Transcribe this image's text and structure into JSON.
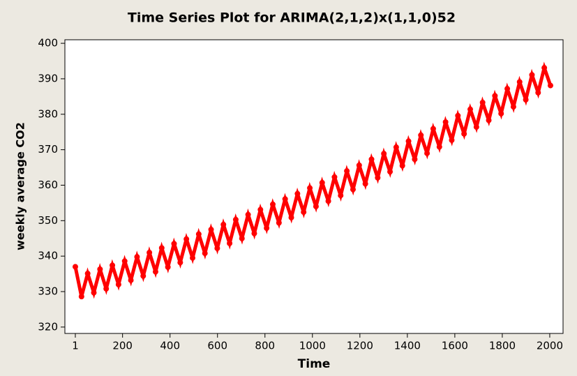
{
  "chart_data": {
    "type": "line",
    "title": "Time Series Plot for ARIMA(2,1,2)x(1,1,0)52",
    "x_label": "Time",
    "y_label": "weekly average CO2",
    "x": [
      1,
      27,
      53,
      79,
      105,
      131,
      157,
      183,
      209,
      235,
      261,
      287,
      313,
      339,
      365,
      391,
      417,
      443,
      469,
      495,
      521,
      547,
      573,
      599,
      625,
      651,
      677,
      703,
      729,
      755,
      781,
      807,
      833,
      859,
      885,
      911,
      937,
      963,
      989,
      1015,
      1041,
      1067,
      1093,
      1119,
      1145,
      1171,
      1197,
      1223,
      1249,
      1275,
      1301,
      1327,
      1353,
      1379,
      1405,
      1431,
      1457,
      1483,
      1509,
      1535,
      1561,
      1587,
      1613,
      1639,
      1665,
      1691,
      1717,
      1743,
      1769,
      1795,
      1821,
      1847,
      1873,
      1899,
      1925,
      1951,
      1977,
      2003
    ],
    "series": [
      {
        "color": "#ff0000",
        "values": [
          337.0,
          328.6,
          335.1,
          329.7,
          336.3,
          330.8,
          337.4,
          332.0,
          338.6,
          333.2,
          339.8,
          334.4,
          341.0,
          335.6,
          342.3,
          336.9,
          343.5,
          338.2,
          344.8,
          339.5,
          346.2,
          340.8,
          347.5,
          342.2,
          348.9,
          343.6,
          350.3,
          345.0,
          351.7,
          346.4,
          353.1,
          347.9,
          354.6,
          349.4,
          356.1,
          350.9,
          357.6,
          352.4,
          359.2,
          354.0,
          360.7,
          355.5,
          362.3,
          357.1,
          364.0,
          358.8,
          365.6,
          360.4,
          367.3,
          362.1,
          368.9,
          363.8,
          370.7,
          365.5,
          372.4,
          367.3,
          374.1,
          369.0,
          375.9,
          370.8,
          377.8,
          372.7,
          379.6,
          374.5,
          381.4,
          376.4,
          383.3,
          378.3,
          385.2,
          380.2,
          387.2,
          382.1,
          389.1,
          384.1,
          391.1,
          386.1,
          393.1,
          388.1
        ]
      }
    ],
    "xlim": [
      -43,
      2056
    ],
    "xticks": [
      1,
      200,
      400,
      600,
      800,
      1000,
      1200,
      1400,
      1600,
      1800,
      2000
    ],
    "ylim": [
      318.2,
      401
    ],
    "yticks": [
      320,
      330,
      340,
      350,
      360,
      370,
      380,
      390,
      400
    ]
  }
}
